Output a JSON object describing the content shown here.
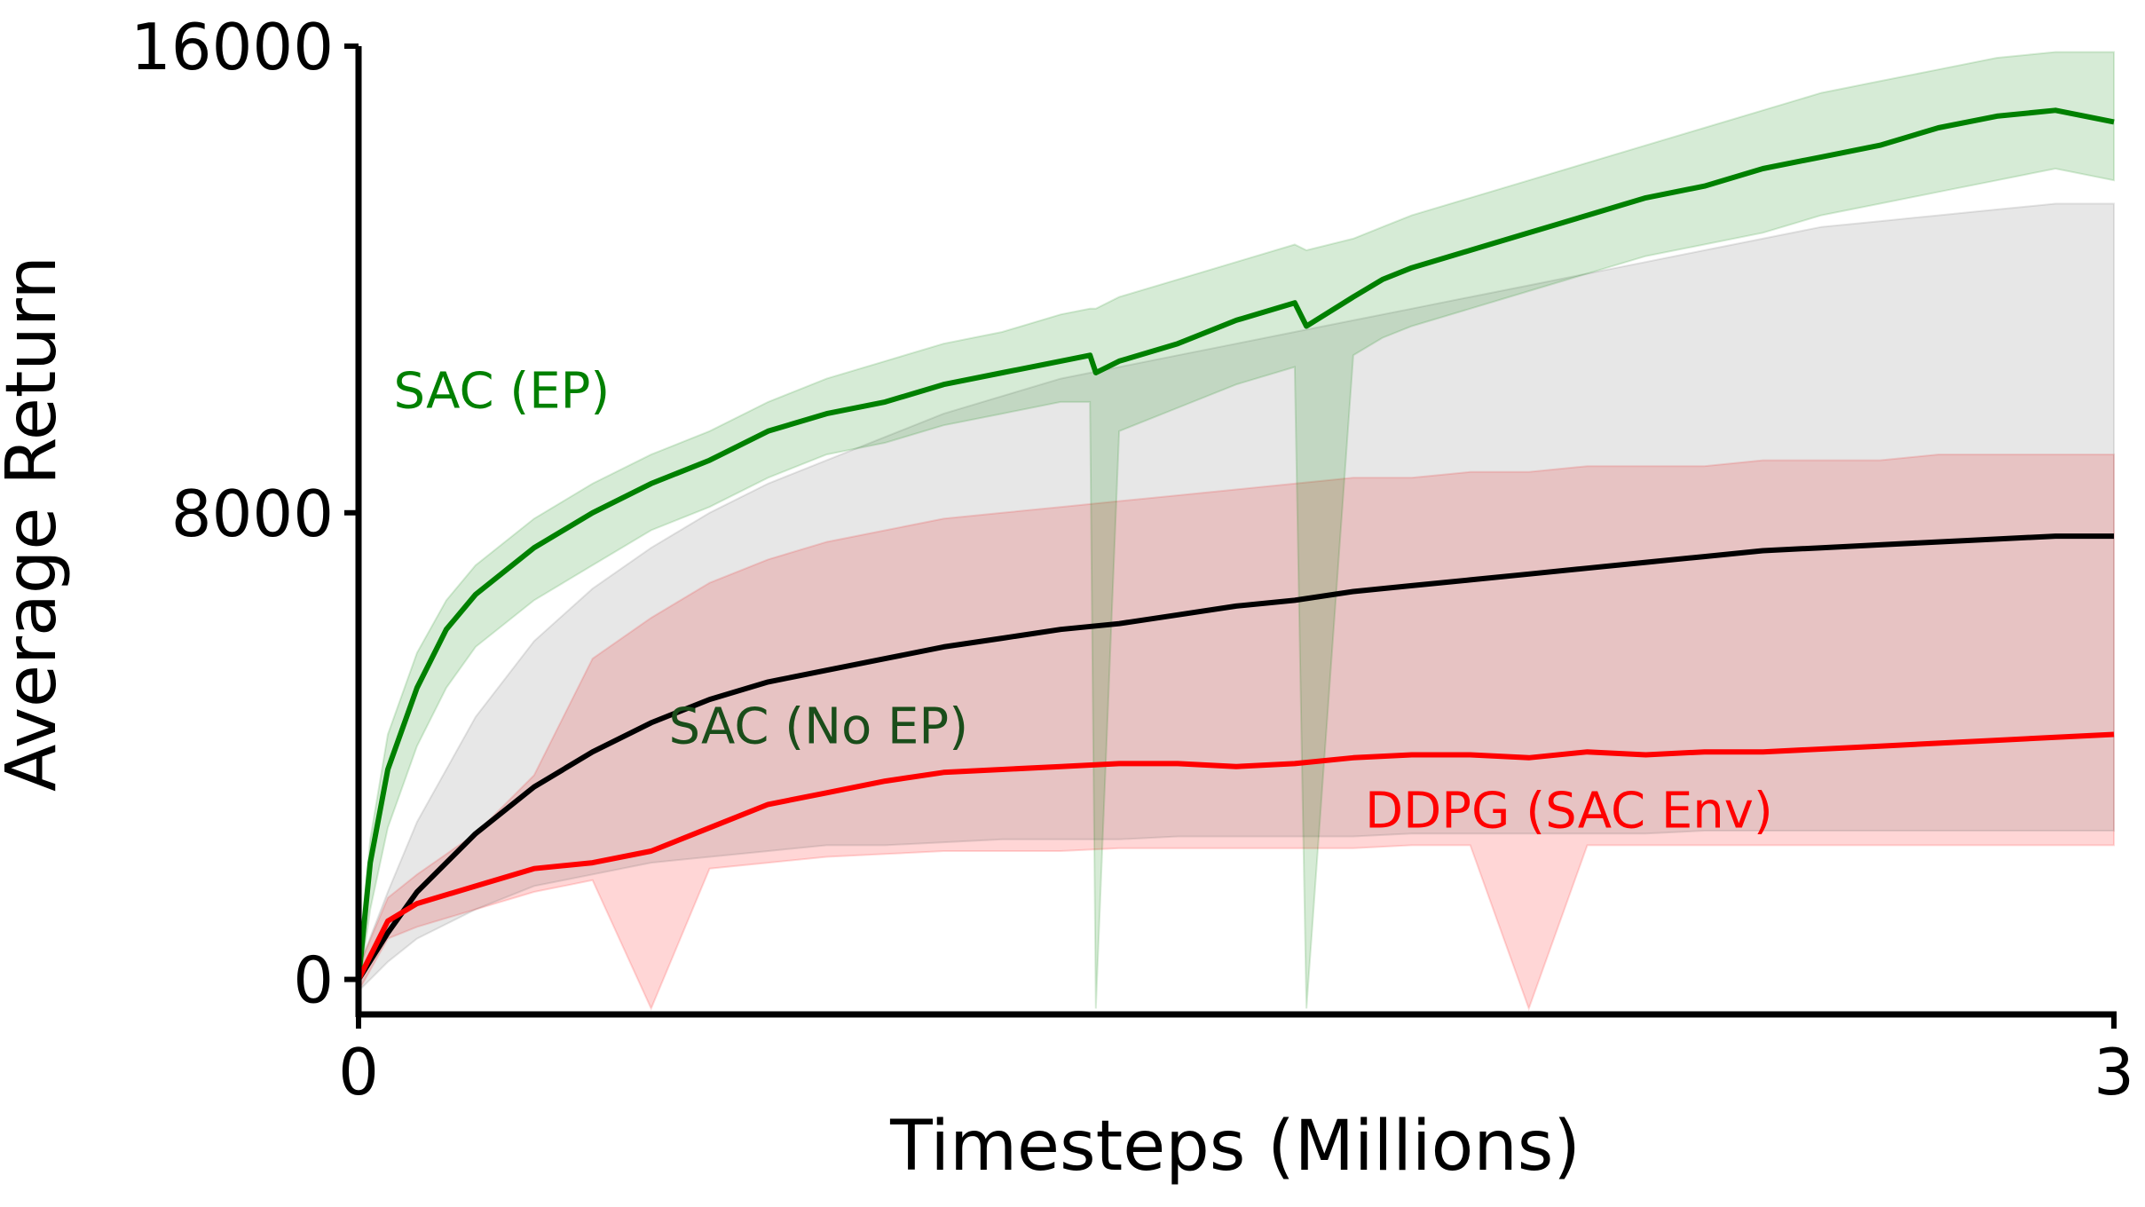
{
  "chart_data": {
    "type": "line",
    "title": "",
    "xlabel": "Timesteps (Millions)",
    "ylabel": "Average Return",
    "xlim": [
      0,
      3
    ],
    "ylim": [
      -600,
      16000
    ],
    "xticks": [
      0,
      3
    ],
    "yticks": [
      0,
      8000,
      16000
    ],
    "grid": false,
    "legend": "inline labels",
    "series": [
      {
        "name": "SAC (EP)",
        "color": "#008000",
        "label_anchor": {
          "x": 0.06,
          "y": 9800
        },
        "x": [
          0,
          0.02,
          0.05,
          0.1,
          0.15,
          0.2,
          0.3,
          0.4,
          0.5,
          0.6,
          0.7,
          0.8,
          0.9,
          1.0,
          1.1,
          1.2,
          1.25,
          1.26,
          1.3,
          1.4,
          1.5,
          1.6,
          1.62,
          1.7,
          1.75,
          1.8,
          1.9,
          2.0,
          2.1,
          2.2,
          2.3,
          2.4,
          2.5,
          2.6,
          2.7,
          2.8,
          2.9,
          3.0
        ],
        "y": [
          0,
          2000,
          3600,
          5000,
          6000,
          6600,
          7400,
          8000,
          8500,
          8900,
          9400,
          9700,
          9900,
          10200,
          10400,
          10600,
          10700,
          10400,
          10600,
          10900,
          11300,
          11600,
          11200,
          11700,
          12000,
          12200,
          12500,
          12800,
          13100,
          13400,
          13600,
          13900,
          14100,
          14300,
          14600,
          14800,
          14900,
          14700
        ],
        "upper": [
          300,
          2400,
          4200,
          5600,
          6500,
          7100,
          7900,
          8500,
          9000,
          9400,
          9900,
          10300,
          10600,
          10900,
          11100,
          11400,
          11500,
          11500,
          11700,
          12000,
          12300,
          12600,
          12500,
          12700,
          12900,
          13100,
          13400,
          13700,
          14000,
          14300,
          14600,
          14900,
          15200,
          15400,
          15600,
          15800,
          15900,
          15900
        ],
        "lower": [
          -200,
          1200,
          2600,
          4000,
          5000,
          5700,
          6500,
          7100,
          7700,
          8100,
          8600,
          9000,
          9200,
          9500,
          9700,
          9900,
          9900,
          -500,
          9400,
          9800,
          10200,
          10500,
          -500,
          10700,
          11000,
          11200,
          11500,
          11800,
          12100,
          12400,
          12600,
          12800,
          13100,
          13300,
          13500,
          13700,
          13900,
          13700
        ]
      },
      {
        "name": "SAC (No EP)",
        "color": "#000000",
        "label_anchor": {
          "x": 0.53,
          "y": 4050
        },
        "x": [
          0,
          0.05,
          0.1,
          0.2,
          0.3,
          0.4,
          0.5,
          0.6,
          0.7,
          0.8,
          0.9,
          1.0,
          1.1,
          1.2,
          1.3,
          1.4,
          1.5,
          1.6,
          1.7,
          1.8,
          1.9,
          2.0,
          2.1,
          2.2,
          2.3,
          2.4,
          2.5,
          2.6,
          2.7,
          2.8,
          2.9,
          3.0
        ],
        "y": [
          0,
          800,
          1500,
          2500,
          3300,
          3900,
          4400,
          4800,
          5100,
          5300,
          5500,
          5700,
          5850,
          6000,
          6100,
          6250,
          6400,
          6500,
          6650,
          6750,
          6850,
          6950,
          7050,
          7150,
          7250,
          7350,
          7400,
          7450,
          7500,
          7550,
          7600,
          7600
        ],
        "upper": [
          200,
          1500,
          2700,
          4500,
          5800,
          6700,
          7400,
          8000,
          8500,
          8900,
          9300,
          9700,
          10000,
          10300,
          10500,
          10700,
          10900,
          11100,
          11300,
          11500,
          11700,
          11900,
          12100,
          12300,
          12500,
          12700,
          12900,
          13000,
          13100,
          13200,
          13300,
          13300
        ],
        "lower": [
          -200,
          300,
          700,
          1200,
          1600,
          1800,
          2000,
          2100,
          2200,
          2300,
          2300,
          2350,
          2400,
          2400,
          2400,
          2450,
          2450,
          2450,
          2450,
          2500,
          2500,
          2500,
          2500,
          2500,
          2550,
          2550,
          2550,
          2550,
          2550,
          2550,
          2550,
          2550
        ]
      },
      {
        "name": "DDPG (SAC Env)",
        "color": "#ff0000",
        "label_anchor": {
          "x": 1.72,
          "y": 2600
        },
        "x": [
          0,
          0.05,
          0.1,
          0.2,
          0.3,
          0.4,
          0.5,
          0.6,
          0.7,
          0.8,
          0.9,
          1.0,
          1.1,
          1.2,
          1.3,
          1.4,
          1.5,
          1.6,
          1.7,
          1.8,
          1.9,
          2.0,
          2.1,
          2.2,
          2.3,
          2.4,
          2.5,
          2.6,
          2.7,
          2.8,
          2.9,
          3.0
        ],
        "y": [
          0,
          1000,
          1300,
          1600,
          1900,
          2000,
          2200,
          2600,
          3000,
          3200,
          3400,
          3550,
          3600,
          3650,
          3700,
          3700,
          3650,
          3700,
          3800,
          3850,
          3850,
          3800,
          3900,
          3850,
          3900,
          3900,
          3950,
          4000,
          4050,
          4100,
          4150,
          4200
        ],
        "upper": [
          200,
          1400,
          1800,
          2500,
          3500,
          5500,
          6200,
          6800,
          7200,
          7500,
          7700,
          7900,
          8000,
          8100,
          8200,
          8300,
          8400,
          8500,
          8600,
          8600,
          8700,
          8700,
          8800,
          8800,
          8800,
          8900,
          8900,
          8900,
          9000,
          9000,
          9000,
          9000
        ],
        "lower": [
          -200,
          700,
          900,
          1200,
          1500,
          1700,
          -500,
          1900,
          2000,
          2100,
          2150,
          2200,
          2200,
          2200,
          2250,
          2250,
          2250,
          2250,
          2250,
          2300,
          2300,
          -500,
          2300,
          2300,
          2300,
          2300,
          2300,
          2300,
          2300,
          2300,
          2300,
          2300
        ]
      }
    ]
  }
}
